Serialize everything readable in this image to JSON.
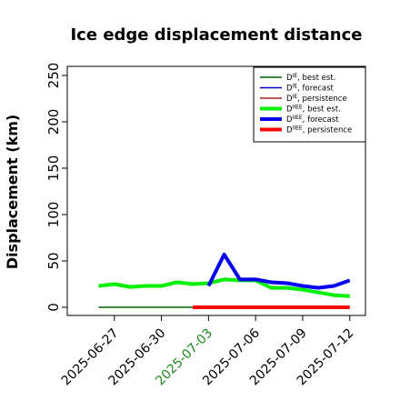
{
  "chart_data": {
    "type": "line",
    "title": "Ice edge displacement distance",
    "ylabel": "Displacement (km)",
    "xlabel": "",
    "ylim": [
      0,
      260
    ],
    "xlim": [
      "2025-06-24",
      "2025-07-13"
    ],
    "yticks": [
      "0",
      "50",
      "100",
      "150",
      "200",
      "250"
    ],
    "xticks": [
      {
        "date": "2025-06-27",
        "label": "2025-06-27",
        "color": "#000000"
      },
      {
        "date": "2025-06-30",
        "label": "2025-06-30",
        "color": "#000000"
      },
      {
        "date": "2025-07-03",
        "label": "2025-07-03",
        "color": "#228b22"
      },
      {
        "date": "2025-07-06",
        "label": "2025-07-06",
        "color": "#000000"
      },
      {
        "date": "2025-07-09",
        "label": "2025-07-09",
        "color": "#000000"
      },
      {
        "date": "2025-07-12",
        "label": "2025-07-12",
        "color": "#000000"
      }
    ],
    "legend_position": "top-right",
    "grid": false,
    "series": [
      {
        "name": "D^IE, best est.",
        "base": "D",
        "sup": "IE",
        "suffix": ", best est.",
        "color": "#006400",
        "width": 1.5,
        "x": [
          "2025-06-26",
          "2025-06-27",
          "2025-06-28",
          "2025-06-29",
          "2025-06-30",
          "2025-07-01",
          "2025-07-02"
        ],
        "y": [
          0,
          0,
          0,
          0,
          0,
          0,
          0
        ]
      },
      {
        "name": "D^IE, forecast",
        "base": "D",
        "sup": "IE",
        "suffix": ", forecast",
        "color": "#0000cd",
        "width": 1.5,
        "x": [],
        "y": []
      },
      {
        "name": "D^IE, persistence",
        "base": "D",
        "sup": "IE",
        "suffix": ", persistence",
        "color": "#b22222",
        "width": 1.5,
        "x": [],
        "y": []
      },
      {
        "name": "D^IIEE, best est.",
        "base": "D",
        "sup": "IIEE",
        "suffix": ", best est.",
        "color": "#00ee00",
        "width": 4,
        "x": [
          "2025-06-26",
          "2025-06-27",
          "2025-06-28",
          "2025-06-29",
          "2025-06-30",
          "2025-07-01",
          "2025-07-02",
          "2025-07-03",
          "2025-07-04",
          "2025-07-05",
          "2025-07-06",
          "2025-07-07",
          "2025-07-08",
          "2025-07-09",
          "2025-07-10",
          "2025-07-11",
          "2025-07-12"
        ],
        "y": [
          23,
          25,
          22,
          23,
          23,
          27,
          25,
          26,
          30,
          29,
          29,
          21,
          21,
          19,
          16,
          13,
          12
        ]
      },
      {
        "name": "D^IIEE, forecast",
        "base": "D",
        "sup": "IIEE",
        "suffix": ", forecast",
        "color": "#0000ee",
        "width": 4,
        "x": [
          "2025-07-03",
          "2025-07-04",
          "2025-07-05",
          "2025-07-06",
          "2025-07-07",
          "2025-07-08",
          "2025-07-09",
          "2025-07-10",
          "2025-07-11",
          "2025-07-12"
        ],
        "y": [
          23,
          57,
          30,
          30,
          27,
          26,
          23,
          21,
          23,
          29
        ]
      },
      {
        "name": "D^IIEE, persistence",
        "base": "D",
        "sup": "IIEE",
        "suffix": ", persistence",
        "color": "#ff0000",
        "width": 4,
        "x": [
          "2025-07-02",
          "2025-07-03",
          "2025-07-04",
          "2025-07-05",
          "2025-07-06",
          "2025-07-07",
          "2025-07-08",
          "2025-07-09",
          "2025-07-10",
          "2025-07-11",
          "2025-07-12"
        ],
        "y": [
          0,
          0,
          0,
          0,
          0,
          0,
          0,
          0,
          0,
          0,
          0
        ]
      }
    ]
  }
}
